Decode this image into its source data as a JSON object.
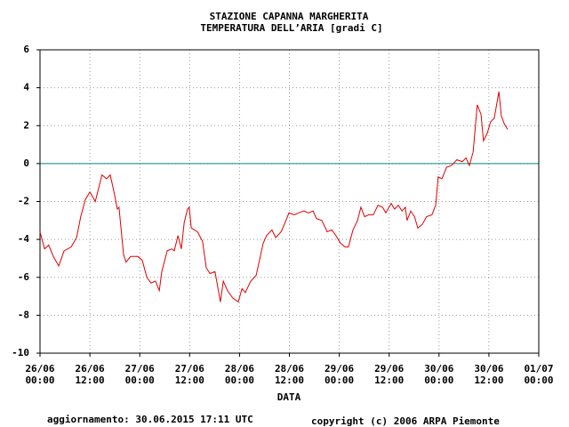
{
  "chart_data": {
    "type": "line",
    "title": [
      "STAZIONE CAPANNA MARGHERITA",
      "TEMPERATURA DELL’ARIA [gradi C]"
    ],
    "xlabel": "DATA",
    "update_note": "aggiornamento: 30.06.2015 17:11 UTC",
    "copyright": "copyright (c) 2006 ARPA Piemonte",
    "copyright_color": "#000080",
    "grid": true,
    "hline": {
      "y": 0,
      "color": "#008b8b"
    },
    "xlim": [
      0,
      120
    ],
    "ylim": [
      -10,
      6
    ],
    "yticks": [
      -10,
      -8,
      -6,
      -4,
      -2,
      0,
      2,
      4,
      6
    ],
    "xticks": [
      {
        "value": 0,
        "label": [
          "26/06",
          "00:00"
        ]
      },
      {
        "value": 12,
        "label": [
          "26/06",
          "12:00"
        ]
      },
      {
        "value": 24,
        "label": [
          "27/06",
          "00:00"
        ]
      },
      {
        "value": 36,
        "label": [
          "27/06",
          "12:00"
        ]
      },
      {
        "value": 48,
        "label": [
          "28/06",
          "00:00"
        ]
      },
      {
        "value": 60,
        "label": [
          "28/06",
          "12:00"
        ]
      },
      {
        "value": 72,
        "label": [
          "29/06",
          "00:00"
        ]
      },
      {
        "value": 84,
        "label": [
          "29/06",
          "12:00"
        ]
      },
      {
        "value": 96,
        "label": [
          "30/06",
          "00:00"
        ]
      },
      {
        "value": 108,
        "label": [
          "30/06",
          "12:00"
        ]
      },
      {
        "value": 120,
        "label": [
          "01/07",
          "00:00"
        ]
      }
    ],
    "series": [
      {
        "color": "#e00000",
        "x": [
          0,
          1.1,
          2.1,
          3.2,
          4.5,
          5.8,
          7.5,
          8.8,
          9.8,
          10.9,
          12.0,
          13.3,
          14.9,
          16.0,
          16.9,
          17.9,
          18.6,
          19.0,
          20.1,
          20.7,
          21.8,
          23.5,
          24.6,
          25.7,
          26.7,
          27.8,
          28.7,
          29.3,
          30.6,
          31.7,
          32.3,
          33.2,
          34.0,
          34.7,
          35.5,
          35.9,
          36.4,
          37.9,
          39.1,
          40.0,
          40.9,
          42.1,
          43.0,
          43.4,
          44.1,
          45.1,
          46.4,
          47.7,
          48.6,
          49.4,
          50.7,
          52.0,
          52.8,
          53.7,
          54.5,
          55.8,
          56.7,
          58.0,
          58.8,
          59.9,
          61.2,
          62.2,
          63.5,
          64.6,
          65.7,
          66.5,
          67.8,
          69.1,
          70.2,
          71.2,
          72.3,
          73.4,
          74.2,
          75.3,
          76.4,
          77.2,
          78.1,
          79.1,
          80.2,
          81.3,
          82.4,
          83.2,
          84.5,
          85.3,
          86.2,
          87.1,
          87.9,
          88.3,
          89.2,
          90.1,
          90.9,
          92.0,
          93.0,
          94.3,
          95.2,
          95.8,
          96.7,
          97.8,
          99.0,
          100.3,
          101.6,
          102.5,
          103.3,
          104.2,
          105.2,
          106.1,
          106.7,
          107.6,
          108.4,
          109.3,
          110.4,
          111.0,
          111.7,
          112.5
        ],
        "values": [
          -3.6,
          -4.5,
          -4.3,
          -4.9,
          -5.4,
          -4.6,
          -4.4,
          -3.9,
          -2.8,
          -1.9,
          -1.5,
          -2.0,
          -0.6,
          -0.8,
          -0.6,
          -1.6,
          -2.4,
          -2.3,
          -4.8,
          -5.2,
          -4.9,
          -4.9,
          -5.1,
          -6.0,
          -6.3,
          -6.2,
          -6.7,
          -5.7,
          -4.6,
          -4.5,
          -4.6,
          -3.8,
          -4.5,
          -3.1,
          -2.4,
          -2.3,
          -3.4,
          -3.6,
          -4.1,
          -5.5,
          -5.8,
          -5.7,
          -6.8,
          -7.3,
          -6.2,
          -6.7,
          -7.1,
          -7.3,
          -6.6,
          -6.8,
          -6.2,
          -5.9,
          -5.1,
          -4.2,
          -3.8,
          -3.5,
          -3.9,
          -3.6,
          -3.2,
          -2.6,
          -2.7,
          -2.6,
          -2.5,
          -2.6,
          -2.5,
          -2.9,
          -3.0,
          -3.6,
          -3.5,
          -3.8,
          -4.2,
          -4.4,
          -4.4,
          -3.5,
          -3.0,
          -2.3,
          -2.8,
          -2.7,
          -2.7,
          -2.2,
          -2.3,
          -2.6,
          -2.1,
          -2.4,
          -2.2,
          -2.5,
          -2.3,
          -3.0,
          -2.5,
          -2.8,
          -3.4,
          -3.2,
          -2.8,
          -2.7,
          -2.2,
          -0.7,
          -0.8,
          -0.2,
          -0.1,
          0.2,
          0.1,
          0.3,
          -0.1,
          0.6,
          3.1,
          2.6,
          1.2,
          1.6,
          2.2,
          2.4,
          3.8,
          2.5,
          2.1,
          1.8
        ]
      }
    ]
  }
}
